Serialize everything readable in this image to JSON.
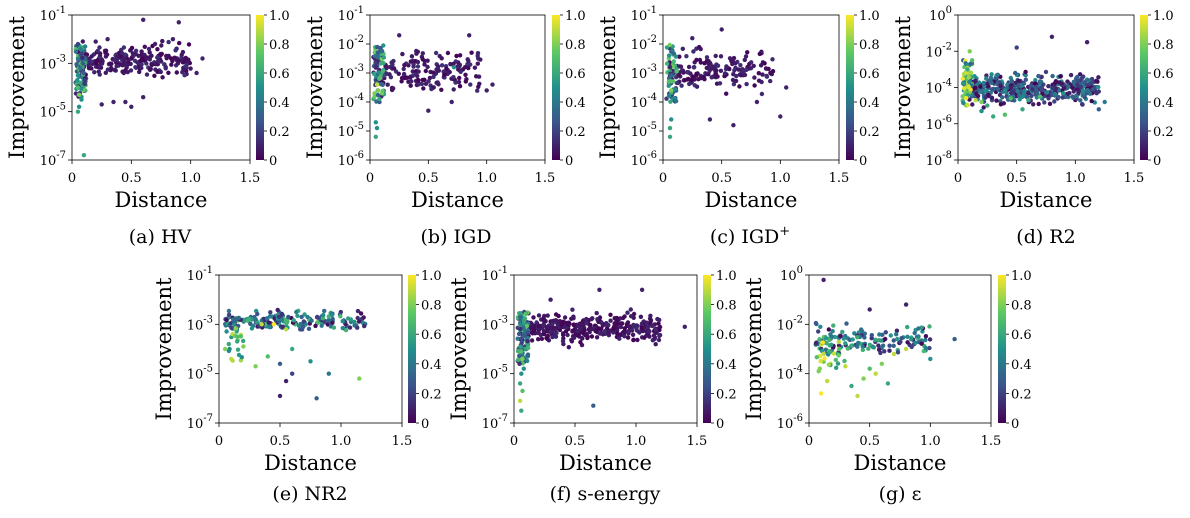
{
  "figure": {
    "colorbar": {
      "ticks": [
        "0",
        "0.2",
        "0.4",
        "0.6",
        "0.8",
        "1.0"
      ],
      "colormap": [
        "#440154",
        "#3b528b",
        "#21918c",
        "#5ec962",
        "#fde725"
      ]
    }
  },
  "chart_data": [
    {
      "type": "scatter",
      "caption": "(a) HV",
      "caption_main": "(a) HV",
      "caption_sup": "",
      "xlabel": "Distance",
      "ylabel": "Improvement",
      "xlim": [
        0,
        1.5
      ],
      "ylim_exp": [
        -7,
        -1
      ],
      "xticks": [
        "0",
        "0.5",
        "1.0",
        "1.5"
      ],
      "yticks": [
        {
          "exp": -1,
          "label": "-1"
        },
        {
          "exp": -3,
          "label": "-3"
        },
        {
          "exp": -5,
          "label": "-5"
        },
        {
          "exp": -7,
          "label": "-7"
        }
      ],
      "color_scale": [
        0,
        1
      ],
      "points": [
        [
          0.1,
          -6.8,
          0.6
        ],
        [
          0.05,
          -4.0,
          0.7
        ],
        [
          0.06,
          -4.3,
          0.8
        ],
        [
          0.07,
          -3.8,
          0.6
        ],
        [
          0.08,
          -4.5,
          0.5
        ],
        [
          0.06,
          -4.8,
          0.5
        ],
        [
          0.05,
          -5.0,
          0.6
        ],
        [
          0.05,
          -3.5,
          0.5
        ],
        [
          0.07,
          -3.2,
          0.4
        ],
        [
          0.09,
          -3.0,
          0.3
        ],
        [
          0.08,
          -2.6,
          0.2
        ],
        [
          0.1,
          -3.4,
          0.3
        ],
        [
          0.45,
          -4.6,
          0.1
        ],
        [
          0.5,
          -4.8,
          0.1
        ],
        [
          0.35,
          -4.6,
          0.1
        ],
        [
          0.6,
          -4.4,
          0.1
        ],
        [
          0.25,
          -4.7,
          0.1
        ],
        [
          0.9,
          -1.3,
          0.1
        ],
        [
          1.05,
          -3.4,
          0.1
        ],
        [
          1.1,
          -2.8,
          0.1
        ],
        [
          0.6,
          -1.2,
          0.1
        ],
        [
          0.3,
          -2.0,
          0.1
        ],
        [
          0.7,
          -2.2,
          0.1
        ],
        [
          0.2,
          -2.1,
          0.1
        ],
        [
          0.85,
          -2.0,
          0.1
        ]
      ],
      "dense_cluster": {
        "x_range": [
          0.05,
          1.0
        ],
        "exp_range": [
          -3.8,
          -2.0
        ],
        "count": 260,
        "cmin": 0,
        "cmax": 0.15
      },
      "dense_stripe": {
        "x_range": [
          0.03,
          0.12
        ],
        "exp_range": [
          -4.4,
          -2.2
        ],
        "count": 80,
        "cmin": 0.1,
        "cmax": 0.8
      }
    },
    {
      "type": "scatter",
      "caption": "(b) IGD",
      "caption_main": "(b) IGD",
      "caption_sup": "",
      "xlabel": "Distance",
      "ylabel": "Improvement",
      "xlim": [
        0,
        1.5
      ],
      "ylim_exp": [
        -6,
        -1
      ],
      "xticks": [
        "0",
        "0.5",
        "1.0",
        "1.5"
      ],
      "yticks": [
        {
          "exp": -1,
          "label": "-1"
        },
        {
          "exp": -2,
          "label": "-2"
        },
        {
          "exp": -3,
          "label": "-3"
        },
        {
          "exp": -4,
          "label": "-4"
        },
        {
          "exp": -5,
          "label": "-5"
        },
        {
          "exp": -6,
          "label": "-6"
        }
      ],
      "color_scale": [
        0,
        1
      ],
      "points": [
        [
          0.05,
          -4.7,
          0.5
        ],
        [
          0.06,
          -4.9,
          0.5
        ],
        [
          0.05,
          -5.2,
          0.6
        ],
        [
          0.08,
          -3.9,
          0.6
        ],
        [
          0.07,
          -3.6,
          0.8
        ],
        [
          0.06,
          -3.4,
          0.9
        ],
        [
          0.08,
          -3.2,
          0.7
        ],
        [
          0.5,
          -4.3,
          0.1
        ],
        [
          0.7,
          -4.0,
          0.1
        ],
        [
          0.72,
          -2.8,
          0.5
        ],
        [
          1.0,
          -3.6,
          0.1
        ],
        [
          1.05,
          -3.4,
          0.1
        ],
        [
          0.85,
          -1.7,
          0.1
        ],
        [
          0.25,
          -1.7,
          0.1
        ]
      ],
      "dense_cluster": {
        "x_range": [
          0.05,
          0.95
        ],
        "exp_range": [
          -3.9,
          -2.0
        ],
        "count": 180,
        "cmin": 0,
        "cmax": 0.15
      },
      "dense_stripe": {
        "x_range": [
          0.03,
          0.12
        ],
        "exp_range": [
          -4.0,
          -2.0
        ],
        "count": 60,
        "cmin": 0.1,
        "cmax": 0.8
      }
    },
    {
      "type": "scatter",
      "caption": "(c) IGD+",
      "caption_main": "(c) IGD",
      "caption_sup": "+",
      "xlabel": "Distance",
      "ylabel": "Improvement",
      "xlim": [
        0,
        1.5
      ],
      "ylim_exp": [
        -6,
        -1
      ],
      "xticks": [
        "0",
        "0.5",
        "1.0",
        "1.5"
      ],
      "yticks": [
        {
          "exp": -1,
          "label": "-1"
        },
        {
          "exp": -2,
          "label": "-2"
        },
        {
          "exp": -3,
          "label": "-3"
        },
        {
          "exp": -4,
          "label": "-4"
        },
        {
          "exp": -5,
          "label": "-5"
        },
        {
          "exp": -6,
          "label": "-6"
        }
      ],
      "color_scale": [
        0,
        1
      ],
      "points": [
        [
          0.06,
          -4.9,
          0.6
        ],
        [
          0.06,
          -5.2,
          0.6
        ],
        [
          0.07,
          -4.6,
          0.5
        ],
        [
          0.07,
          -3.6,
          0.8
        ],
        [
          0.05,
          -3.3,
          0.7
        ],
        [
          0.4,
          -4.6,
          0.1
        ],
        [
          0.6,
          -4.8,
          0.1
        ],
        [
          1.0,
          -4.5,
          0.1
        ],
        [
          1.05,
          -3.5,
          0.1
        ],
        [
          0.8,
          -4.0,
          0.1
        ],
        [
          0.5,
          -1.5,
          0.1
        ],
        [
          0.25,
          -1.8,
          0.1
        ]
      ],
      "dense_cluster": {
        "x_range": [
          0.05,
          0.95
        ],
        "exp_range": [
          -3.9,
          -2.0
        ],
        "count": 170,
        "cmin": 0,
        "cmax": 0.15
      },
      "dense_stripe": {
        "x_range": [
          0.03,
          0.12
        ],
        "exp_range": [
          -4.0,
          -2.0
        ],
        "count": 55,
        "cmin": 0.1,
        "cmax": 0.8
      }
    },
    {
      "type": "scatter",
      "caption": "(d) R2",
      "caption_main": "(d) R2",
      "caption_sup": "",
      "xlabel": "Distance",
      "ylabel": "Improvement",
      "xlim": [
        0,
        1.5
      ],
      "ylim_exp": [
        -8,
        0
      ],
      "xticks": [
        "0",
        "0.5",
        "1.0",
        "1.5"
      ],
      "yticks": [
        {
          "exp": 0,
          "label": "0"
        },
        {
          "exp": -2,
          "label": "-2"
        },
        {
          "exp": -4,
          "label": "-4"
        },
        {
          "exp": -6,
          "label": "-6"
        },
        {
          "exp": -8,
          "label": "-8"
        }
      ],
      "color_scale": [
        0,
        1
      ],
      "points": [
        [
          0.1,
          -2.0,
          0.8
        ],
        [
          0.12,
          -2.5,
          0.7
        ],
        [
          0.08,
          -3.0,
          0.6
        ],
        [
          0.15,
          -4.7,
          0.9
        ],
        [
          0.2,
          -4.8,
          0.8
        ],
        [
          0.45,
          -4.6,
          0.7
        ],
        [
          0.6,
          -4.7,
          0.6
        ],
        [
          0.7,
          -4.5,
          0.7
        ],
        [
          0.3,
          -5.6,
          0.6
        ],
        [
          0.4,
          -5.5,
          0.7
        ],
        [
          0.2,
          -5.3,
          0.5
        ],
        [
          0.25,
          -5.0,
          0.6
        ],
        [
          0.55,
          -5.2,
          0.6
        ],
        [
          1.1,
          -1.5,
          0.1
        ],
        [
          0.8,
          -1.2,
          0.1
        ],
        [
          1.25,
          -4.8,
          0.4
        ],
        [
          1.2,
          -5.2,
          0.3
        ],
        [
          0.5,
          -1.8,
          0.2
        ]
      ],
      "dense_cluster": {
        "x_range": [
          0.05,
          1.2
        ],
        "exp_range": [
          -5.2,
          -3.0
        ],
        "count": 480,
        "cmin": 0,
        "cmax": 0.5
      },
      "dense_stripe": {
        "x_range": [
          0.04,
          0.12
        ],
        "exp_range": [
          -5.0,
          -2.5
        ],
        "count": 60,
        "cmin": 0.3,
        "cmax": 1.0
      }
    },
    {
      "type": "scatter",
      "caption": "(e) NR2",
      "caption_main": "(e) NR2",
      "caption_sup": "",
      "xlabel": "Distance",
      "ylabel": "Improvement",
      "xlim": [
        0,
        1.5
      ],
      "ylim_exp": [
        -7,
        -1
      ],
      "xticks": [
        "0",
        "0.5",
        "1.0",
        "1.5"
      ],
      "yticks": [
        {
          "exp": -1,
          "label": "-1"
        },
        {
          "exp": -3,
          "label": "-3"
        },
        {
          "exp": -5,
          "label": "-5"
        },
        {
          "exp": -7,
          "label": "-7"
        }
      ],
      "color_scale": [
        0,
        1
      ],
      "points": [
        [
          0.08,
          -3.8,
          0.6
        ],
        [
          0.05,
          -4.0,
          0.8
        ],
        [
          0.1,
          -4.4,
          0.9
        ],
        [
          0.2,
          -3.9,
          0.8
        ],
        [
          0.3,
          -4.7,
          0.8
        ],
        [
          0.4,
          -4.3,
          0.7
        ],
        [
          0.55,
          -5.3,
          0.1
        ],
        [
          0.6,
          -5.0,
          0.2
        ],
        [
          0.5,
          -5.9,
          0.1
        ],
        [
          0.8,
          -6.0,
          0.3
        ],
        [
          0.75,
          -4.5,
          0.5
        ],
        [
          0.9,
          -5.0,
          0.4
        ],
        [
          1.15,
          -5.2,
          0.8
        ],
        [
          0.55,
          -3.2,
          0.9
        ],
        [
          0.6,
          -4.0,
          0.6
        ],
        [
          0.45,
          -3.0,
          1.0
        ],
        [
          0.35,
          -3.0,
          0.9
        ],
        [
          0.15,
          -3.5,
          0.7
        ],
        [
          0.5,
          -4.6,
          0.3
        ]
      ],
      "dense_cluster": {
        "x_range": [
          0.05,
          1.2
        ],
        "exp_range": [
          -3.4,
          -2.3
        ],
        "count": 200,
        "cmin": 0,
        "cmax": 0.7
      },
      "dense_stripe": {
        "x_range": [
          0.05,
          0.2
        ],
        "exp_range": [
          -4.5,
          -3.0
        ],
        "count": 20,
        "cmin": 0.4,
        "cmax": 0.9
      }
    },
    {
      "type": "scatter",
      "caption": "(f) s-energy",
      "caption_main": "(f) s-energy",
      "caption_sup": "",
      "xlabel": "Distance",
      "ylabel": "Improvement",
      "xlim": [
        0,
        1.5
      ],
      "ylim_exp": [
        -7,
        -1
      ],
      "xticks": [
        "0",
        "0.5",
        "1.0",
        "1.5"
      ],
      "yticks": [
        {
          "exp": -1,
          "label": "-1"
        },
        {
          "exp": -3,
          "label": "-3"
        },
        {
          "exp": -5,
          "label": "-5"
        },
        {
          "exp": -7,
          "label": "-7"
        }
      ],
      "color_scale": [
        0,
        1
      ],
      "points": [
        [
          0.05,
          -6.1,
          0.9
        ],
        [
          0.06,
          -6.5,
          0.6
        ],
        [
          0.07,
          -5.7,
          0.7
        ],
        [
          0.05,
          -5.4,
          0.6
        ],
        [
          0.06,
          -5.0,
          0.5
        ],
        [
          0.08,
          -4.8,
          0.5
        ],
        [
          0.07,
          -4.4,
          0.8
        ],
        [
          0.06,
          -4.1,
          0.7
        ],
        [
          0.65,
          -6.3,
          0.3
        ],
        [
          1.05,
          -1.6,
          0.1
        ],
        [
          0.7,
          -1.6,
          0.1
        ],
        [
          1.4,
          -3.1,
          0.1
        ],
        [
          0.3,
          -2.0,
          0.1
        ]
      ],
      "dense_cluster": {
        "x_range": [
          0.05,
          1.2
        ],
        "exp_range": [
          -4.0,
          -2.3
        ],
        "count": 380,
        "cmin": 0,
        "cmax": 0.12
      },
      "dense_stripe": {
        "x_range": [
          0.03,
          0.12
        ],
        "exp_range": [
          -4.6,
          -2.5
        ],
        "count": 90,
        "cmin": 0.1,
        "cmax": 0.8
      }
    },
    {
      "type": "scatter",
      "caption": "(g) ε",
      "caption_main": "(g) ε",
      "caption_sup": "",
      "xlabel": "Distance",
      "ylabel": "Improvement",
      "xlim": [
        0,
        1.5
      ],
      "ylim_exp": [
        -6,
        0
      ],
      "xticks": [
        "0",
        "0.5",
        "1.0",
        "1.5"
      ],
      "yticks": [
        {
          "exp": 0,
          "label": "0"
        },
        {
          "exp": -2,
          "label": "-2"
        },
        {
          "exp": -4,
          "label": "-4"
        },
        {
          "exp": -6,
          "label": "-6"
        }
      ],
      "color_scale": [
        0,
        1
      ],
      "points": [
        [
          0.1,
          -4.8,
          1.0
        ],
        [
          0.15,
          -4.3,
          0.9
        ],
        [
          0.4,
          -4.9,
          0.9
        ],
        [
          0.45,
          -4.2,
          0.8
        ],
        [
          0.5,
          -3.8,
          0.7
        ],
        [
          0.3,
          -3.7,
          0.9
        ],
        [
          0.35,
          -4.5,
          0.6
        ],
        [
          0.55,
          -4.0,
          0.9
        ],
        [
          0.6,
          -3.6,
          0.8
        ],
        [
          0.65,
          -4.4,
          0.6
        ],
        [
          0.12,
          -3.2,
          0.9
        ],
        [
          0.08,
          -3.9,
          0.8
        ],
        [
          0.25,
          -3.0,
          0.7
        ],
        [
          0.7,
          -3.2,
          0.9
        ],
        [
          0.8,
          -3.0,
          0.9
        ],
        [
          1.2,
          -2.6,
          0.3
        ],
        [
          1.0,
          -3.4,
          0.5
        ],
        [
          0.8,
          -1.2,
          0.1
        ],
        [
          0.12,
          -0.2,
          0.1
        ],
        [
          0.5,
          -1.4,
          0.1
        ]
      ],
      "dense_cluster": {
        "x_range": [
          0.05,
          1.0
        ],
        "exp_range": [
          -3.5,
          -1.8
        ],
        "count": 140,
        "cmin": 0,
        "cmax": 0.7
      },
      "dense_stripe": {
        "x_range": [
          0.05,
          0.3
        ],
        "exp_range": [
          -3.8,
          -2.5
        ],
        "count": 30,
        "cmin": 0.4,
        "cmax": 1.0
      }
    }
  ]
}
